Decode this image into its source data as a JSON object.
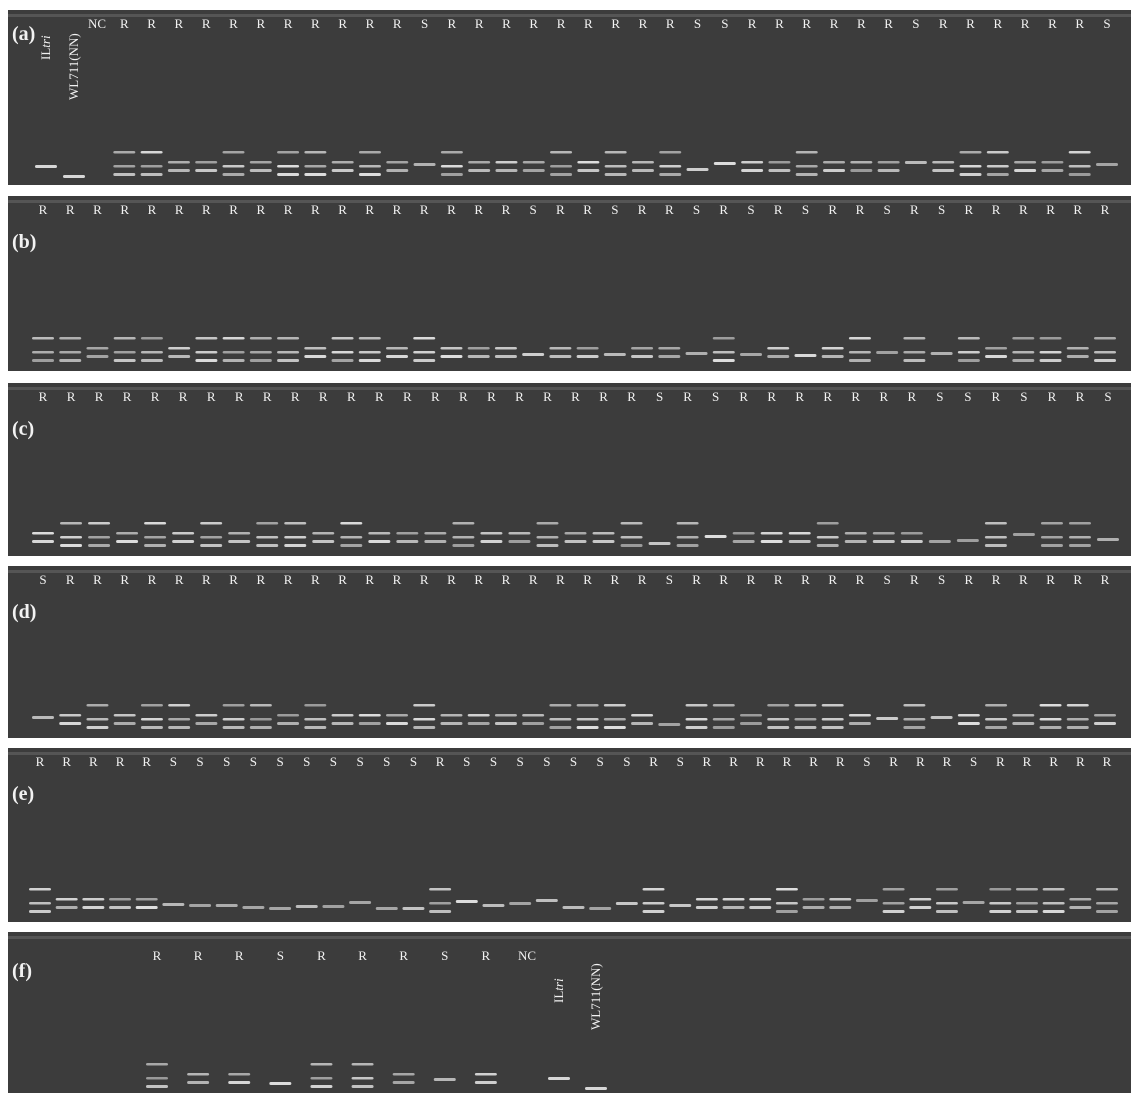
{
  "panels": [
    {
      "label": "(a)",
      "control_labels": {
        "il": "IL",
        "il_italic": "tri",
        "wl": "WL711(NN)"
      },
      "lanes": [
        "NC",
        "R",
        "R",
        "R",
        "R",
        "R",
        "R",
        "R",
        "R",
        "R",
        "R",
        "R",
        "S",
        "R",
        "R",
        "R",
        "R",
        "R",
        "R",
        "R",
        "R",
        "R",
        "S",
        "S",
        "R",
        "R",
        "R",
        "R",
        "R",
        "R",
        "S",
        "R",
        "R",
        "R",
        "R",
        "R",
        "R",
        "S"
      ]
    },
    {
      "label": "(b)",
      "lanes": [
        "R",
        "R",
        "R",
        "R",
        "R",
        "R",
        "R",
        "R",
        "R",
        "R",
        "R",
        "R",
        "R",
        "R",
        "R",
        "R",
        "R",
        "R",
        "S",
        "R",
        "R",
        "S",
        "R",
        "R",
        "S",
        "R",
        "S",
        "R",
        "S",
        "R",
        "R",
        "S",
        "R",
        "S",
        "R",
        "R",
        "R",
        "R",
        "R",
        "R"
      ]
    },
    {
      "label": "(c)",
      "lanes": [
        "R",
        "R",
        "R",
        "R",
        "R",
        "R",
        "R",
        "R",
        "R",
        "R",
        "R",
        "R",
        "R",
        "R",
        "R",
        "R",
        "R",
        "R",
        "R",
        "R",
        "R",
        "R",
        "S",
        "R",
        "S",
        "R",
        "R",
        "R",
        "R",
        "R",
        "R",
        "R",
        "S",
        "S",
        "R",
        "S",
        "R",
        "R",
        "S"
      ]
    },
    {
      "label": "(d)",
      "lanes": [
        "S",
        "R",
        "R",
        "R",
        "R",
        "R",
        "R",
        "R",
        "R",
        "R",
        "R",
        "R",
        "R",
        "R",
        "R",
        "R",
        "R",
        "R",
        "R",
        "R",
        "R",
        "R",
        "R",
        "S",
        "R",
        "R",
        "R",
        "R",
        "R",
        "R",
        "R",
        "S",
        "R",
        "S",
        "R",
        "R",
        "R",
        "R",
        "R",
        "R"
      ]
    },
    {
      "label": "(e)",
      "lanes": [
        "R",
        "R",
        "R",
        "R",
        "R",
        "S",
        "S",
        "S",
        "S",
        "S",
        "S",
        "S",
        "S",
        "S",
        "S",
        "R",
        "S",
        "S",
        "S",
        "S",
        "S",
        "S",
        "S",
        "R",
        "S",
        "R",
        "R",
        "R",
        "R",
        "R",
        "R",
        "S",
        "R",
        "R",
        "R",
        "S",
        "R",
        "R",
        "R",
        "R",
        "R"
      ]
    },
    {
      "label": "(f)",
      "control_labels": {
        "il": "IL",
        "il_italic": "tri",
        "wl": "WL711(NN)"
      },
      "lanes": [
        "R",
        "R",
        "R",
        "S",
        "R",
        "R",
        "R",
        "S",
        "R",
        "NC"
      ]
    }
  ]
}
